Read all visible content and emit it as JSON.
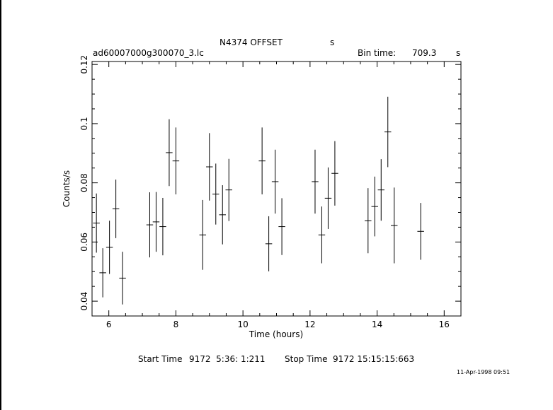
{
  "header": {
    "title": "N4374 OFFSET",
    "title_suffix": "s",
    "filename": "ad60007000g300070_3.lc",
    "bin_label": "Bin time:",
    "bin_value": "709.3",
    "bin_unit": "s"
  },
  "footer": {
    "start_label": "Start Time",
    "start_value": "9172  5:36: 1:211",
    "stop_label": "Stop Time",
    "stop_value": "9172 15:15:15:663",
    "date_stamp": "11-Apr-1998 09:51"
  },
  "chart_data": {
    "type": "scatter",
    "style": "error-bars",
    "xlabel": "Time (hours)",
    "ylabel": "Counts/s",
    "xlim": [
      5.5,
      16.5
    ],
    "ylim": [
      0.035,
      0.121
    ],
    "xticks": [
      6,
      8,
      10,
      12,
      14,
      16
    ],
    "yticks": [
      0.04,
      0.06,
      0.08,
      0.1,
      0.12
    ],
    "ytick_labels": [
      "0.04",
      "0.06",
      "0.08",
      "0.1",
      "0.12"
    ],
    "grid": false,
    "points": [
      {
        "x": 5.63,
        "y": 0.0664,
        "err": 0.01,
        "xerr": 0.1
      },
      {
        "x": 5.82,
        "y": 0.0496,
        "err": 0.0083,
        "xerr": 0.1
      },
      {
        "x": 6.02,
        "y": 0.0582,
        "err": 0.009,
        "xerr": 0.1
      },
      {
        "x": 6.21,
        "y": 0.0712,
        "err": 0.0099,
        "xerr": 0.1
      },
      {
        "x": 6.41,
        "y": 0.0478,
        "err": 0.0089,
        "xerr": 0.1
      },
      {
        "x": 7.22,
        "y": 0.0658,
        "err": 0.011,
        "xerr": 0.1
      },
      {
        "x": 7.41,
        "y": 0.0668,
        "err": 0.0101,
        "xerr": 0.1
      },
      {
        "x": 7.61,
        "y": 0.0652,
        "err": 0.0097,
        "xerr": 0.1
      },
      {
        "x": 7.8,
        "y": 0.0902,
        "err": 0.0113,
        "xerr": 0.1
      },
      {
        "x": 8.0,
        "y": 0.0874,
        "err": 0.0113,
        "xerr": 0.1
      },
      {
        "x": 8.8,
        "y": 0.0624,
        "err": 0.0118,
        "xerr": 0.1
      },
      {
        "x": 9.0,
        "y": 0.0854,
        "err": 0.0114,
        "xerr": 0.1
      },
      {
        "x": 9.19,
        "y": 0.0762,
        "err": 0.0103,
        "xerr": 0.1
      },
      {
        "x": 9.39,
        "y": 0.0692,
        "err": 0.01,
        "xerr": 0.1
      },
      {
        "x": 9.58,
        "y": 0.0776,
        "err": 0.0105,
        "xerr": 0.1
      },
      {
        "x": 10.57,
        "y": 0.0874,
        "err": 0.0113,
        "xerr": 0.1
      },
      {
        "x": 10.77,
        "y": 0.0594,
        "err": 0.0093,
        "xerr": 0.1
      },
      {
        "x": 10.96,
        "y": 0.0804,
        "err": 0.0108,
        "xerr": 0.1
      },
      {
        "x": 11.16,
        "y": 0.0652,
        "err": 0.0096,
        "xerr": 0.1
      },
      {
        "x": 12.15,
        "y": 0.0804,
        "err": 0.0108,
        "xerr": 0.1
      },
      {
        "x": 12.35,
        "y": 0.0624,
        "err": 0.0096,
        "xerr": 0.1
      },
      {
        "x": 12.54,
        "y": 0.0748,
        "err": 0.0104,
        "xerr": 0.1
      },
      {
        "x": 12.74,
        "y": 0.0832,
        "err": 0.0109,
        "xerr": 0.1
      },
      {
        "x": 13.73,
        "y": 0.0672,
        "err": 0.011,
        "xerr": 0.1
      },
      {
        "x": 13.93,
        "y": 0.072,
        "err": 0.0101,
        "xerr": 0.1
      },
      {
        "x": 14.12,
        "y": 0.0776,
        "err": 0.0104,
        "xerr": 0.1
      },
      {
        "x": 14.32,
        "y": 0.0972,
        "err": 0.0119,
        "xerr": 0.1
      },
      {
        "x": 14.51,
        "y": 0.0656,
        "err": 0.0128,
        "xerr": 0.1
      },
      {
        "x": 15.3,
        "y": 0.0636,
        "err": 0.0096,
        "xerr": 0.1
      }
    ]
  }
}
